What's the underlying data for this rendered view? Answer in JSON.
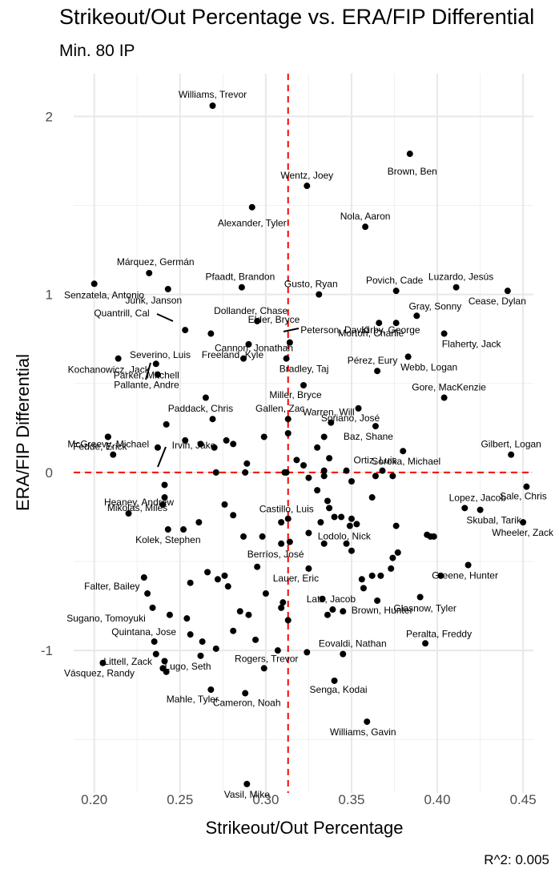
{
  "chart_data": {
    "type": "scatter",
    "title": "Strikeout/Out Percentage vs. ERA/FIP Differential",
    "subtitle": "Min. 80 IP",
    "xlabel": "Strikeout/Out Percentage",
    "ylabel": "ERA/FIP Differential",
    "caption": "R^2: 0.005",
    "xlim": [
      0.188,
      0.456
    ],
    "ylim": [
      -1.8,
      2.24
    ],
    "x_ticks": [
      0.2,
      0.25,
      0.3,
      0.35,
      0.4,
      0.45
    ],
    "x_tick_labels": [
      "0.20",
      "0.25",
      "0.30",
      "0.35",
      "0.40",
      "0.45"
    ],
    "y_ticks": [
      -1,
      0,
      1,
      2
    ],
    "y_tick_labels": [
      "-1",
      "0",
      "1",
      "2"
    ],
    "grid": true,
    "ref_lines": {
      "x": 0.313,
      "y": 0,
      "color": "#ff0000"
    },
    "labeled_points": [
      {
        "name": "Williams, Trevor",
        "x": 0.269,
        "y": 2.06
      },
      {
        "name": "Brown, Ben",
        "x": 0.384,
        "y": 1.79
      },
      {
        "name": "Wentz, Joey",
        "x": 0.324,
        "y": 1.61
      },
      {
        "name": "Alexander, Tyler",
        "x": 0.292,
        "y": 1.49
      },
      {
        "name": "Nola, Aaron",
        "x": 0.358,
        "y": 1.38
      },
      {
        "name": "Márquez, Germán",
        "x": 0.232,
        "y": 1.12
      },
      {
        "name": "Senzatela, Antonio",
        "x": 0.2,
        "y": 1.06
      },
      {
        "name": "Pfaadt, Brandon",
        "x": 0.286,
        "y": 1.04
      },
      {
        "name": "Gusto, Ryan",
        "x": 0.331,
        "y": 1.0
      },
      {
        "name": "Povich, Cade",
        "x": 0.376,
        "y": 1.02
      },
      {
        "name": "Luzardo, Jesús",
        "x": 0.411,
        "y": 1.04
      },
      {
        "name": "Cease, Dylan",
        "x": 0.441,
        "y": 1.02
      },
      {
        "name": "Junk, Janson",
        "x": 0.243,
        "y": 1.03
      },
      {
        "name": "Dollander, Chase",
        "x": 0.295,
        "y": 0.85
      },
      {
        "name": "Gray, Sonny",
        "x": 0.388,
        "y": 0.88
      },
      {
        "name": "Morton, Charlie",
        "x": 0.366,
        "y": 0.84
      },
      {
        "name": "Quantrill, Cal",
        "x": 0.253,
        "y": 0.8
      },
      {
        "name": "Elder, Bryce",
        "x": 0.268,
        "y": 0.78
      },
      {
        "name": "Peterson, David",
        "x": 0.314,
        "y": 0.73
      },
      {
        "name": "Kirby, George",
        "x": 0.376,
        "y": 0.84
      },
      {
        "name": "Flaherty, Jack",
        "x": 0.404,
        "y": 0.78
      },
      {
        "name": "Kochanowicz, Jack",
        "x": 0.214,
        "y": 0.64
      },
      {
        "name": "Freeland, Kyle",
        "x": 0.29,
        "y": 0.72
      },
      {
        "name": "Bradley, Taj",
        "x": 0.312,
        "y": 0.64
      },
      {
        "name": "Webb, Logan",
        "x": 0.383,
        "y": 0.65
      },
      {
        "name": "Parker, Mitchell",
        "x": 0.236,
        "y": 0.61
      },
      {
        "name": "Cannon, Jonathan",
        "x": 0.287,
        "y": 0.64
      },
      {
        "name": "Pallante, Andre",
        "x": 0.237,
        "y": 0.55
      },
      {
        "name": "Miller, Bryce",
        "x": 0.322,
        "y": 0.49
      },
      {
        "name": "Pérez, Eury",
        "x": 0.365,
        "y": 0.57
      },
      {
        "name": "Severino, Luis",
        "x": 0.265,
        "y": 0.42
      },
      {
        "name": "Gore, MacKenzie",
        "x": 0.404,
        "y": 0.42
      },
      {
        "name": "Soriano, José",
        "x": 0.354,
        "y": 0.36
      },
      {
        "name": "Paddack, Chris",
        "x": 0.269,
        "y": 0.3
      },
      {
        "name": "Gallen, Zac",
        "x": 0.313,
        "y": 0.3
      },
      {
        "name": "Baz, Shane",
        "x": 0.364,
        "y": 0.26
      },
      {
        "name": "Warren, Will",
        "x": 0.338,
        "y": 0.28
      },
      {
        "name": "Fedde, Erick",
        "x": 0.208,
        "y": 0.2
      },
      {
        "name": "Soroka, Michael",
        "x": 0.38,
        "y": 0.12
      },
      {
        "name": "Gilbert, Logan",
        "x": 0.443,
        "y": 0.1
      },
      {
        "name": "Irvin, Jake",
        "x": 0.241,
        "y": -0.07
      },
      {
        "name": "McGreevy, Michael",
        "x": 0.211,
        "y": 0.1
      },
      {
        "name": "Ortiz, Luis",
        "x": 0.368,
        "y": 0.01
      },
      {
        "name": "Sale, Chris",
        "x": 0.452,
        "y": -0.08
      },
      {
        "name": "Mikolas, Miles",
        "x": 0.241,
        "y": -0.14
      },
      {
        "name": "Lopez, Jacob",
        "x": 0.416,
        "y": -0.2
      },
      {
        "name": "Skubal, Tarik",
        "x": 0.425,
        "y": -0.21
      },
      {
        "name": "Heaney, Andrew",
        "x": 0.22,
        "y": -0.23
      },
      {
        "name": "Wheeler, Zack",
        "x": 0.45,
        "y": -0.28
      },
      {
        "name": "Kolek, Stephen",
        "x": 0.243,
        "y": -0.32
      },
      {
        "name": "Castillo, Luis",
        "x": 0.313,
        "y": -0.26
      },
      {
        "name": "Lodolo, Nick",
        "x": 0.349,
        "y": -0.3
      },
      {
        "name": "Greene, Hunter",
        "x": 0.418,
        "y": -0.52
      },
      {
        "name": "Berríos, José",
        "x": 0.309,
        "y": -0.4
      },
      {
        "name": "Falter, Bailey",
        "x": 0.229,
        "y": -0.59
      },
      {
        "name": "Lauer, Eric",
        "x": 0.325,
        "y": -0.54
      },
      {
        "name": "Glasnow, Tyler",
        "x": 0.39,
        "y": -0.7
      },
      {
        "name": "Brown, Hunter",
        "x": 0.365,
        "y": -0.72
      },
      {
        "name": "Sugano, Tomoyuki",
        "x": 0.234,
        "y": -0.76
      },
      {
        "name": "Latz, Jacob",
        "x": 0.339,
        "y": -0.77
      },
      {
        "name": "Peralta, Freddy",
        "x": 0.393,
        "y": -0.96
      },
      {
        "name": "Quintana, Jose",
        "x": 0.235,
        "y": -0.95
      },
      {
        "name": "Lugo, Seth",
        "x": 0.262,
        "y": -1.03
      },
      {
        "name": "Eovaldi, Nathan",
        "x": 0.345,
        "y": -1.02
      },
      {
        "name": "Vásquez, Randy",
        "x": 0.205,
        "y": -1.07
      },
      {
        "name": "Rogers, Trevor",
        "x": 0.299,
        "y": -1.1
      },
      {
        "name": "Littell, Zack",
        "x": 0.242,
        "y": -1.12
      },
      {
        "name": "Senga, Kodai",
        "x": 0.34,
        "y": -1.17
      },
      {
        "name": "Mahle, Tyler",
        "x": 0.268,
        "y": -1.22
      },
      {
        "name": "Cameron, Noah",
        "x": 0.288,
        "y": -1.24
      },
      {
        "name": "Williams, Gavin",
        "x": 0.359,
        "y": -1.4
      },
      {
        "name": "Vasil, Mike",
        "x": 0.289,
        "y": -1.75
      }
    ],
    "unlabeled_points": [
      [
        0.208,
        0.2
      ],
      [
        0.237,
        0.14
      ],
      [
        0.242,
        0.27
      ],
      [
        0.253,
        0.18
      ],
      [
        0.262,
        0.16
      ],
      [
        0.27,
        0.14
      ],
      [
        0.277,
        0.18
      ],
      [
        0.281,
        0.16
      ],
      [
        0.289,
        0.05
      ],
      [
        0.299,
        0.2
      ],
      [
        0.313,
        0.22
      ],
      [
        0.318,
        0.07
      ],
      [
        0.322,
        0.04
      ],
      [
        0.33,
        0.14
      ],
      [
        0.334,
        0.2
      ],
      [
        0.337,
        0.08
      ],
      [
        0.271,
        0.0
      ],
      [
        0.288,
        0.0
      ],
      [
        0.311,
        0.0
      ],
      [
        0.312,
        0.0
      ],
      [
        0.325,
        -0.03
      ],
      [
        0.33,
        -0.1
      ],
      [
        0.334,
        0.01
      ],
      [
        0.334,
        -0.02
      ],
      [
        0.347,
        0.01
      ],
      [
        0.35,
        -0.05
      ],
      [
        0.364,
        -0.02
      ],
      [
        0.374,
        -0.02
      ],
      [
        0.362,
        -0.14
      ],
      [
        0.336,
        -0.16
      ],
      [
        0.34,
        -0.25
      ],
      [
        0.344,
        -0.25
      ],
      [
        0.337,
        -0.2
      ],
      [
        0.353,
        -0.29
      ],
      [
        0.35,
        -0.26
      ],
      [
        0.376,
        -0.3
      ],
      [
        0.398,
        -0.36
      ],
      [
        0.394,
        -0.35
      ],
      [
        0.377,
        -0.45
      ],
      [
        0.402,
        -0.58
      ],
      [
        0.396,
        -0.36
      ],
      [
        0.24,
        -0.18
      ],
      [
        0.252,
        -0.32
      ],
      [
        0.261,
        -0.28
      ],
      [
        0.276,
        -0.18
      ],
      [
        0.281,
        -0.24
      ],
      [
        0.298,
        -0.36
      ],
      [
        0.309,
        -0.28
      ],
      [
        0.287,
        -0.36
      ],
      [
        0.314,
        -0.39
      ],
      [
        0.325,
        -0.34
      ],
      [
        0.334,
        -0.4
      ],
      [
        0.332,
        -0.28
      ],
      [
        0.347,
        -0.4
      ],
      [
        0.35,
        -0.44
      ],
      [
        0.362,
        -0.58
      ],
      [
        0.367,
        -0.58
      ],
      [
        0.373,
        -0.54
      ],
      [
        0.356,
        -0.6
      ],
      [
        0.374,
        -0.48
      ],
      [
        0.231,
        -0.68
      ],
      [
        0.256,
        -0.62
      ],
      [
        0.266,
        -0.56
      ],
      [
        0.272,
        -0.6
      ],
      [
        0.278,
        -0.64
      ],
      [
        0.276,
        -0.58
      ],
      [
        0.295,
        -0.53
      ],
      [
        0.285,
        -0.78
      ],
      [
        0.309,
        -0.76
      ],
      [
        0.3,
        -0.68
      ],
      [
        0.31,
        -0.73
      ],
      [
        0.313,
        -0.83
      ],
      [
        0.333,
        -0.71
      ],
      [
        0.336,
        -0.8
      ],
      [
        0.345,
        -0.78
      ],
      [
        0.357,
        -0.65
      ],
      [
        0.244,
        -0.8
      ],
      [
        0.254,
        -0.82
      ],
      [
        0.256,
        -0.91
      ],
      [
        0.263,
        -0.95
      ],
      [
        0.271,
        -0.99
      ],
      [
        0.281,
        -0.89
      ],
      [
        0.29,
        -0.8
      ],
      [
        0.294,
        -0.94
      ],
      [
        0.307,
        -1.0
      ],
      [
        0.324,
        -1.01
      ],
      [
        0.241,
        -1.06
      ],
      [
        0.236,
        -1.02
      ],
      [
        0.24,
        -1.1
      ]
    ]
  }
}
